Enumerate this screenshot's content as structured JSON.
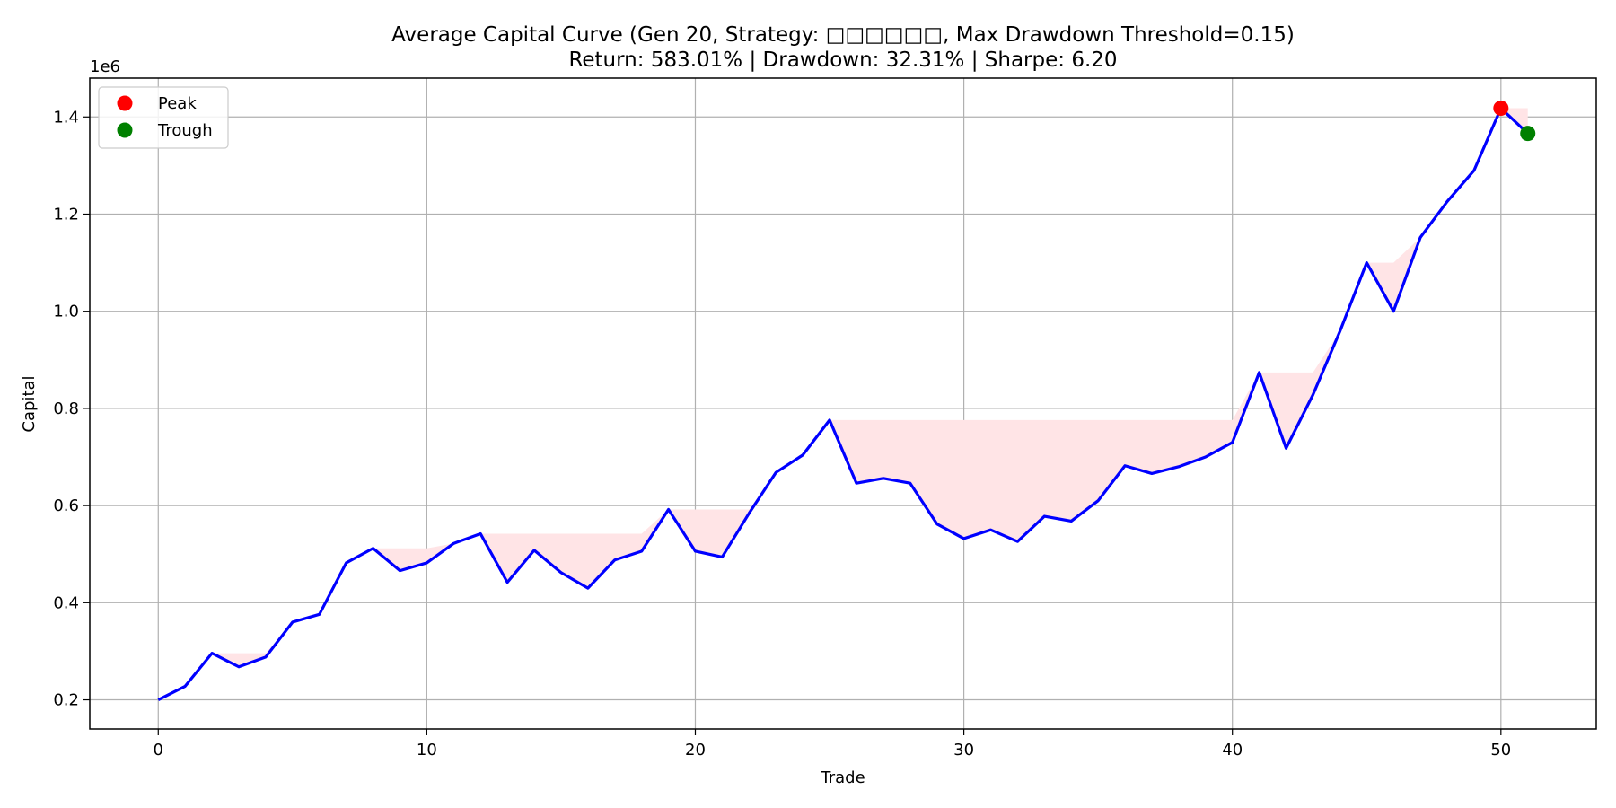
{
  "chart_data": {
    "type": "line",
    "title": "Average Capital Curve (Gen 20, Strategy: □□□□□□, Max Drawdown Threshold=0.15)",
    "subtitle": "Return: 583.01% | Drawdown: 32.31% | Sharpe: 6.20",
    "xlabel": "Trade",
    "ylabel": "Capital",
    "y_offset_label": "1e6",
    "xlim": [
      -2.55,
      53.55
    ],
    "ylim": [
      0.14,
      1.48
    ],
    "x_ticks": [
      0,
      10,
      20,
      30,
      40,
      50
    ],
    "x_tick_labels": [
      "0",
      "10",
      "20",
      "30",
      "40",
      "50"
    ],
    "y_ticks": [
      0.2,
      0.4,
      0.6,
      0.8,
      1.0,
      1.2,
      1.4
    ],
    "y_tick_labels": [
      "0.2",
      "0.4",
      "0.6",
      "0.8",
      "1.0",
      "1.2",
      "1.4"
    ],
    "grid": true,
    "legend_position": "top-left",
    "series": [
      {
        "color": "#0000ff",
        "x": [
          0,
          1,
          2,
          3,
          4,
          5,
          6,
          7,
          8,
          9,
          10,
          11,
          12,
          13,
          14,
          15,
          16,
          17,
          18,
          19,
          20,
          21,
          22,
          23,
          24,
          25,
          26,
          27,
          28,
          29,
          30,
          31,
          32,
          33,
          34,
          35,
          36,
          37,
          38,
          39,
          40,
          41,
          42,
          43,
          44,
          45,
          46,
          47,
          48,
          49,
          50,
          51
        ],
        "y": [
          0.2,
          0.228,
          0.296,
          0.268,
          0.288,
          0.36,
          0.376,
          0.482,
          0.512,
          0.466,
          0.482,
          0.522,
          0.542,
          0.442,
          0.508,
          0.462,
          0.43,
          0.488,
          0.506,
          0.592,
          0.506,
          0.494,
          0.584,
          0.668,
          0.704,
          0.776,
          0.646,
          0.656,
          0.646,
          0.562,
          0.532,
          0.55,
          0.526,
          0.578,
          0.568,
          0.61,
          0.682,
          0.666,
          0.68,
          0.7,
          0.73,
          0.874,
          0.718,
          0.828,
          0.958,
          1.1,
          1.0,
          1.152,
          1.226,
          1.29,
          1.418,
          1.366
        ]
      }
    ],
    "drawdown_fill_color": "#ffe4e6",
    "markers": [
      {
        "name": "Peak",
        "x": 50,
        "y": 1.418,
        "color": "#ff0000"
      },
      {
        "name": "Trough",
        "x": 51,
        "y": 1.366,
        "color": "#008000"
      }
    ],
    "legend": [
      {
        "label": "Peak",
        "color": "#ff0000"
      },
      {
        "label": "Trough",
        "color": "#008000"
      }
    ]
  }
}
